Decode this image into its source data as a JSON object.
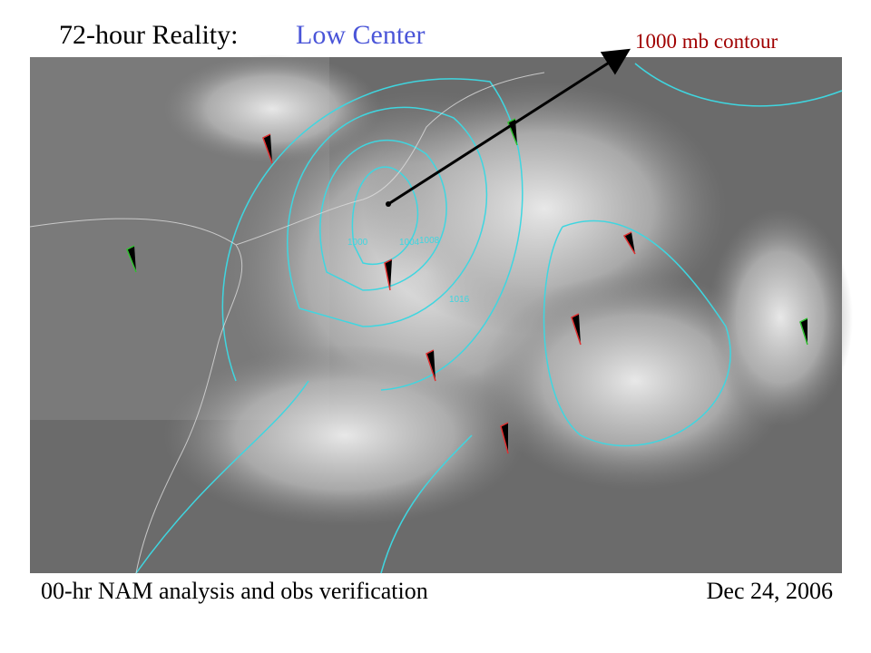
{
  "header": {
    "title": "72-hour Reality:",
    "subtitle": "Low Center"
  },
  "annotation": "1000 mb contour",
  "contour_labels": [
    "1000",
    "1004",
    "1008",
    "1016"
  ],
  "footer": {
    "caption": "00-hr NAM analysis and obs verification",
    "date": "Dec 24, 2006"
  }
}
